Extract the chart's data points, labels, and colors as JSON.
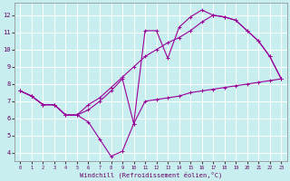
{
  "xlabel": "Windchill (Refroidissement éolien,°C)",
  "bg_color": "#c8eef0",
  "line_color": "#990099",
  "grid_color": "#ffffff",
  "xlim": [
    -0.5,
    23.5
  ],
  "ylim": [
    3.5,
    12.7
  ],
  "xticks": [
    0,
    1,
    2,
    3,
    4,
    5,
    6,
    7,
    8,
    9,
    10,
    11,
    12,
    13,
    14,
    15,
    16,
    17,
    18,
    19,
    20,
    21,
    22,
    23
  ],
  "yticks": [
    4,
    5,
    6,
    7,
    8,
    9,
    10,
    11,
    12
  ],
  "line1_x": [
    0,
    1,
    2,
    3,
    4,
    5,
    6,
    7,
    8,
    9,
    10,
    11,
    12,
    13,
    14,
    15,
    16,
    17,
    18,
    19,
    20,
    21,
    22,
    23
  ],
  "line1_y": [
    7.6,
    7.3,
    6.8,
    6.8,
    6.2,
    6.2,
    5.8,
    4.8,
    3.8,
    4.1,
    5.7,
    7.0,
    7.1,
    7.2,
    7.3,
    7.5,
    7.6,
    7.7,
    7.8,
    7.9,
    8.0,
    8.1,
    8.2,
    8.3
  ],
  "line2_x": [
    0,
    1,
    2,
    3,
    4,
    5,
    6,
    7,
    8,
    9,
    10,
    11,
    12,
    13,
    14,
    15,
    16,
    17,
    18,
    19,
    20,
    21,
    22,
    23
  ],
  "line2_y": [
    7.6,
    7.3,
    6.8,
    6.8,
    6.2,
    6.2,
    6.8,
    7.2,
    7.8,
    8.4,
    9.0,
    9.6,
    10.0,
    10.4,
    10.7,
    11.1,
    11.6,
    12.0,
    11.9,
    11.7,
    11.1,
    10.5,
    9.6,
    8.3
  ],
  "line3_x": [
    0,
    1,
    2,
    3,
    4,
    5,
    6,
    7,
    8,
    9,
    10,
    11,
    12,
    13,
    14,
    15,
    16,
    17,
    18,
    19,
    20,
    21,
    22,
    23
  ],
  "line3_y": [
    7.6,
    7.3,
    6.8,
    6.8,
    6.2,
    6.2,
    6.5,
    7.0,
    7.6,
    8.3,
    5.7,
    11.1,
    11.1,
    9.5,
    11.3,
    11.9,
    12.3,
    12.0,
    11.9,
    11.7,
    11.1,
    10.5,
    9.6,
    8.3
  ]
}
